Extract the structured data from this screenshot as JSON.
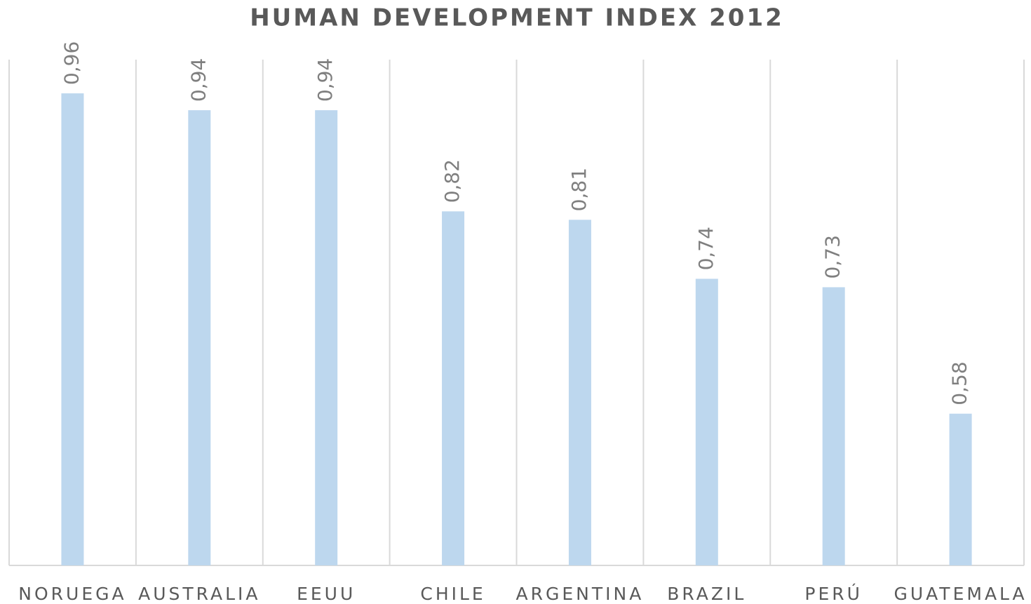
{
  "chart_data": {
    "type": "bar",
    "title": "HUMAN DEVELOPMENT INDEX 2012",
    "categories": [
      "NORUEGA",
      "AUSTRALIA",
      "EEUU",
      "CHILE",
      "ARGENTINA",
      "BRAZIL",
      "PERÚ",
      "GUATEMALA"
    ],
    "values": [
      0.96,
      0.94,
      0.94,
      0.82,
      0.81,
      0.74,
      0.73,
      0.58
    ],
    "value_labels": [
      "0,96",
      "0,94",
      "0,94",
      "0,82",
      "0,81",
      "0,74",
      "0,73",
      "0,58"
    ],
    "color": "#bdd7ee",
    "ylim": [
      0.4,
      1.0
    ]
  }
}
